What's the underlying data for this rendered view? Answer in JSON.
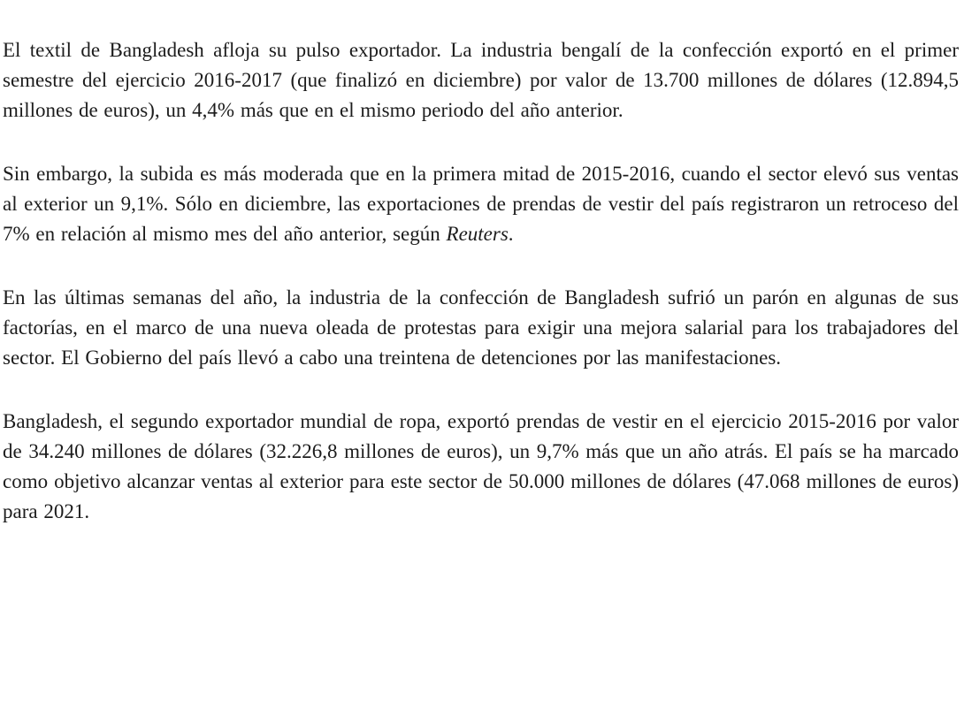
{
  "document": {
    "background_color": "#ffffff",
    "text_color": "#1c1c1c",
    "language": "es",
    "paragraphs": [
      {
        "segments": [
          {
            "text": "El textil de Bangladesh afloja su pulso exportador. La industria bengalí de la confección exportó en el primer semestre del ejercicio 2016-2017 (que finalizó en diciembre) por valor de 13.700 millones de dólares (12.894,5 millones de euros), un 4,4% más que en el mismo periodo del año anterior."
          }
        ]
      },
      {
        "segments": [
          {
            "text": "Sin embargo, la subida es más moderada que en la primera mitad de 2015-2016, cuando el sector elevó sus ventas al exterior un 9,1%. Sólo en diciembre, las exportaciones de prendas de vestir del país registraron un retroceso del 7% en relación al mismo mes del año anterior, según "
          },
          {
            "text": "Reuters",
            "style": "italic"
          },
          {
            "text": "."
          }
        ]
      },
      {
        "segments": [
          {
            "text": "En las últimas semanas del año, la industria de la confección de Bangladesh sufrió un parón en algunas de sus factorías, en el marco de una nueva oleada de protestas para exigir una mejora salarial para los trabajadores del sector. El Gobierno del país llevó a cabo una treintena de detenciones por las manifestaciones."
          }
        ]
      },
      {
        "segments": [
          {
            "text": "Bangladesh, el segundo exportador mundial de ropa, exportó prendas de vestir en el ejercicio 2015-2016 por valor de 34.240 millones de dólares (32.226,8 millones de euros), un 9,7% más que un año atrás. El país se ha marcado como objetivo alcanzar ventas al exterior para este sector de 50.000 millones de dólares (47.068 millones de euros) para 2021."
          }
        ]
      }
    ]
  }
}
